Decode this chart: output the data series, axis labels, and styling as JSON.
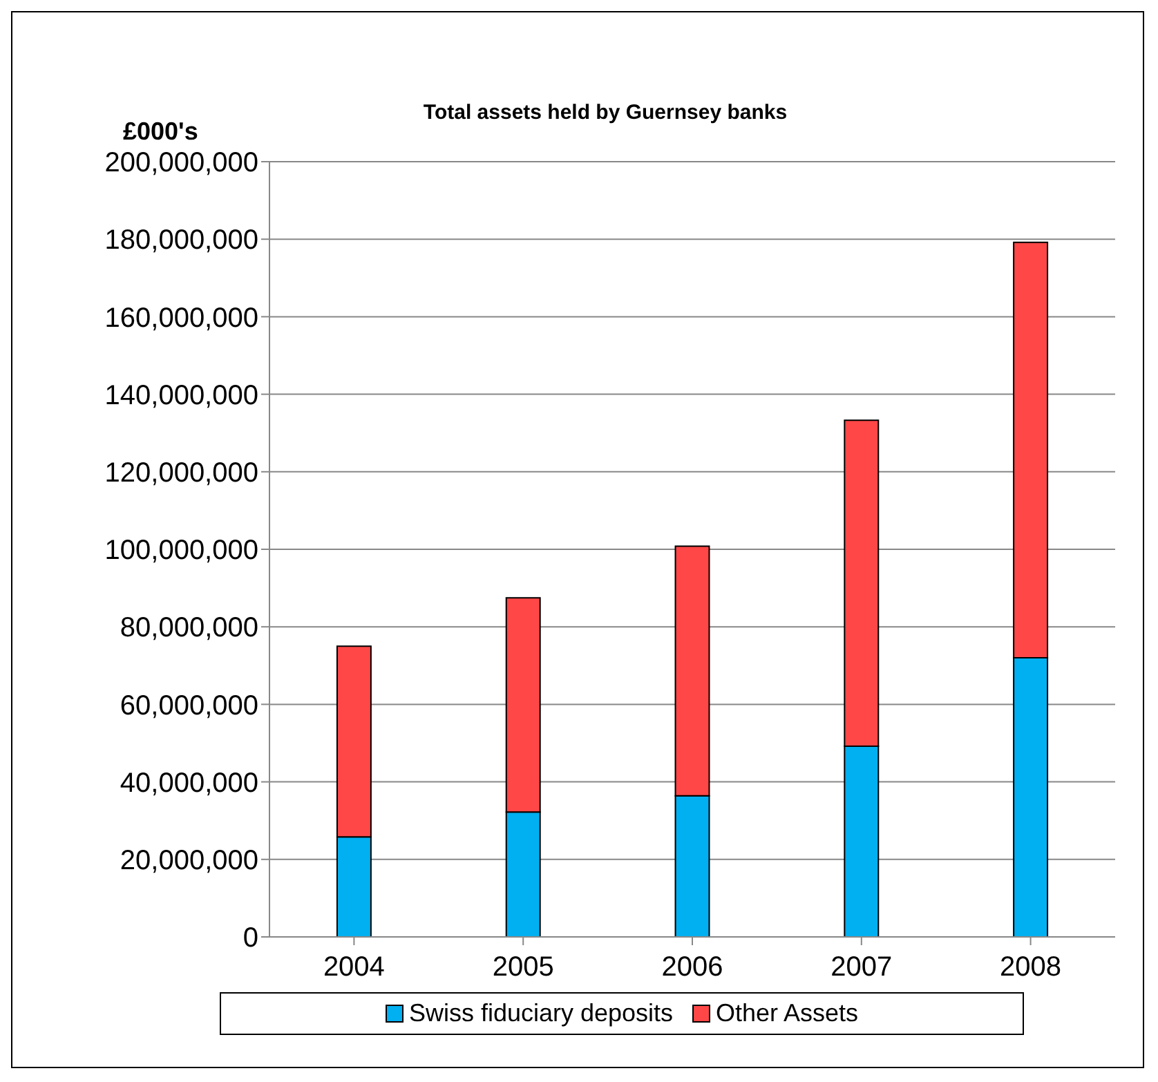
{
  "chart_data": {
    "type": "bar",
    "title": "Total assets held by Guernsey banks",
    "ylabel": "£000's",
    "categories": [
      "2004",
      "2005",
      "2006",
      "2007",
      "2008"
    ],
    "series": [
      {
        "name": "Swiss fiduciary deposits",
        "color": "#00b0f0",
        "values": [
          25800000,
          32200000,
          36400000,
          49200000,
          72000000
        ]
      },
      {
        "name": "Other Assets",
        "color": "#ff4747",
        "values": [
          49200000,
          55300000,
          64400000,
          84100000,
          107200000
        ]
      }
    ],
    "stacked": true,
    "ylim": [
      0,
      200000000
    ],
    "yticks": [
      0,
      {
        "value": 20000000,
        "label": "20,000,000"
      },
      {
        "value": 40000000,
        "label": "40,000,000"
      },
      {
        "value": 60000000,
        "label": "60,000,000"
      },
      {
        "value": 80000000,
        "label": "80,000,000"
      },
      {
        "value": 100000000,
        "label": "100,000,000"
      },
      {
        "value": 120000000,
        "label": "120,000,000"
      },
      {
        "value": 140000000,
        "label": "140,000,000"
      },
      {
        "value": 160000000,
        "label": "160,000,000"
      },
      {
        "value": 180000000,
        "label": "180,000,000"
      },
      {
        "value": 200000000,
        "label": "200,000,000"
      }
    ],
    "grid": "y",
    "legend": "bottom"
  }
}
